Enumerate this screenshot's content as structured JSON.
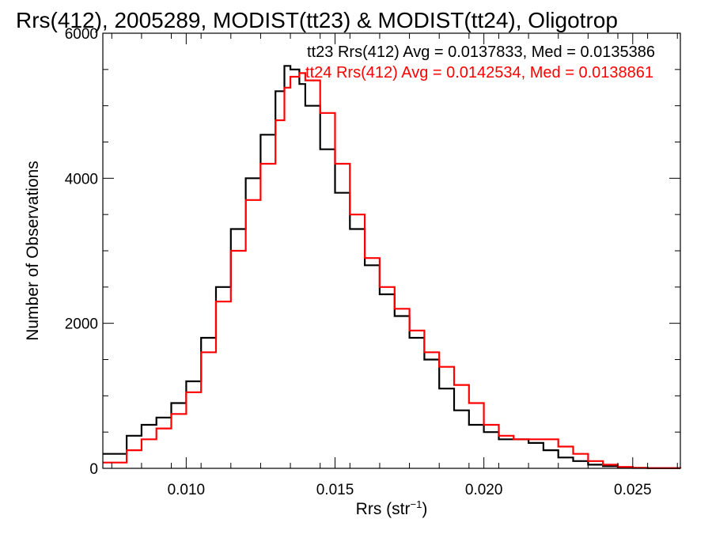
{
  "chart_data": {
    "type": "line",
    "title": "Rrs(412), 2005289, MODIST(tt23) & MODIST(tt24), Oligotrop",
    "xlabel_main": "Rrs (str",
    "xlabel_sup": "−1",
    "xlabel_end": ")",
    "ylabel": "Number of Observations",
    "xlim": [
      0.0072,
      0.0266
    ],
    "ylim": [
      0,
      6000
    ],
    "x_ticks": [
      0.01,
      0.015,
      0.02,
      0.025
    ],
    "x_tick_labels": [
      "0.010",
      "0.015",
      "0.020",
      "0.025"
    ],
    "y_ticks": [
      0,
      2000,
      4000,
      6000
    ],
    "y_tick_labels": [
      "0",
      "2000",
      "4000",
      "6000"
    ],
    "grid": false,
    "legend": "top-right",
    "series": [
      {
        "name": "tt23",
        "color": "#000000",
        "legend_text": "tt23 Rrs(412) Avg = 0.0137833, Med = 0.0135386",
        "x": [
          0.0072,
          0.008,
          0.0085,
          0.009,
          0.0095,
          0.01,
          0.0105,
          0.011,
          0.0115,
          0.012,
          0.0125,
          0.013,
          0.0133,
          0.0135,
          0.0138,
          0.014,
          0.0145,
          0.015,
          0.0155,
          0.016,
          0.0165,
          0.017,
          0.0175,
          0.018,
          0.0185,
          0.019,
          0.0195,
          0.02,
          0.0205,
          0.021,
          0.0215,
          0.022,
          0.0225,
          0.023,
          0.0235,
          0.024,
          0.0245,
          0.025,
          0.0255,
          0.0266
        ],
        "y": [
          200,
          450,
          600,
          700,
          900,
          1200,
          1800,
          2500,
          3300,
          4000,
          4600,
          5200,
          5550,
          5500,
          5300,
          5000,
          4400,
          3800,
          3300,
          2800,
          2400,
          2100,
          1800,
          1500,
          1100,
          800,
          600,
          500,
          400,
          400,
          350,
          250,
          150,
          100,
          50,
          30,
          15,
          5,
          2,
          0
        ]
      },
      {
        "name": "tt24",
        "color": "#ff0000",
        "legend_text": "tt24 Rrs(412) Avg = 0.0142534, Med = 0.0138861",
        "x": [
          0.0072,
          0.008,
          0.0085,
          0.009,
          0.0095,
          0.01,
          0.0105,
          0.011,
          0.0115,
          0.012,
          0.0125,
          0.013,
          0.0133,
          0.0135,
          0.0138,
          0.014,
          0.0145,
          0.015,
          0.0155,
          0.016,
          0.0165,
          0.017,
          0.0175,
          0.018,
          0.0185,
          0.019,
          0.0195,
          0.02,
          0.0205,
          0.021,
          0.0215,
          0.022,
          0.0225,
          0.023,
          0.0235,
          0.024,
          0.0245,
          0.025,
          0.0255,
          0.0266
        ],
        "y": [
          80,
          250,
          400,
          550,
          750,
          1050,
          1600,
          2300,
          3000,
          3700,
          4200,
          4800,
          5250,
          5400,
          5450,
          5350,
          4900,
          4200,
          3500,
          2900,
          2500,
          2200,
          1900,
          1600,
          1400,
          1150,
          900,
          600,
          450,
          400,
          400,
          400,
          300,
          200,
          100,
          50,
          20,
          8,
          3,
          0
        ]
      }
    ]
  }
}
